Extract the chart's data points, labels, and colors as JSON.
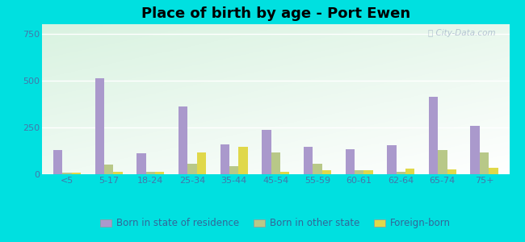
{
  "title": "Place of birth by age - Port Ewen",
  "categories": [
    "<5",
    "5-17",
    "18-24",
    "25-34",
    "35-44",
    "45-54",
    "55-59",
    "60-61",
    "62-64",
    "65-74",
    "75+"
  ],
  "series": {
    "Born in state of residence": [
      130,
      510,
      110,
      360,
      160,
      235,
      145,
      135,
      155,
      415,
      260
    ],
    "Born in other state": [
      10,
      50,
      15,
      55,
      45,
      115,
      55,
      20,
      15,
      130,
      115
    ],
    "Foreign-born": [
      10,
      15,
      15,
      115,
      145,
      15,
      20,
      20,
      30,
      25,
      35
    ]
  },
  "series_colors": {
    "Born in state of residence": "#aa99cc",
    "Born in other state": "#b8c888",
    "Foreign-born": "#e0d84a"
  },
  "ylim": [
    0,
    800
  ],
  "yticks": [
    0,
    250,
    500,
    750
  ],
  "background_color": "#00e0e0",
  "bar_width": 0.22,
  "title_fontsize": 13,
  "tick_fontsize": 8,
  "legend_fontsize": 8.5
}
